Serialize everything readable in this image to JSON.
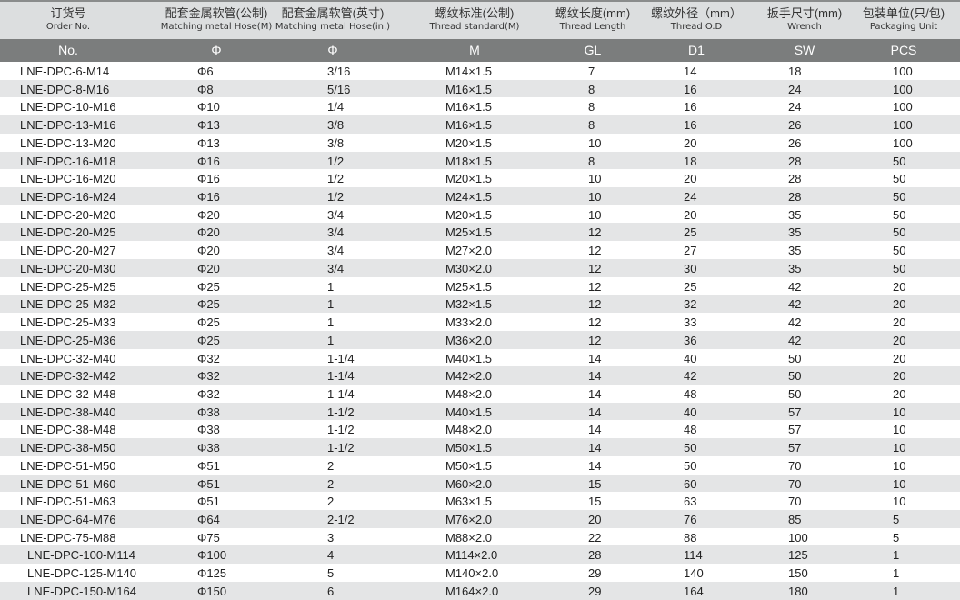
{
  "headers": [
    {
      "zh": "订货号",
      "en": "Order No.",
      "code": "No."
    },
    {
      "zh": "配套金属软管(公制)",
      "en": "Matching metal Hose(M)",
      "code": "Φ"
    },
    {
      "zh": "配套金属软管(英寸)",
      "en": "Matching metal Hose(in.)",
      "code": "Φ"
    },
    {
      "zh": "螺纹标准(公制)",
      "en": "Thread standard(M)",
      "code": "M"
    },
    {
      "zh": "螺纹长度(mm)",
      "en": "Thread  Length",
      "code": "GL"
    },
    {
      "zh": "螺纹外径（mm）",
      "en": "Thread O.D",
      "code": "D1"
    },
    {
      "zh": "扳手尺寸(mm)",
      "en": "Wrench",
      "code": "SW"
    },
    {
      "zh": "包装单位(只/包)",
      "en": "Packaging Unit",
      "code": "PCS"
    }
  ],
  "rows": [
    [
      "LNE-DPC-6-M14",
      "Φ6",
      "3/16",
      "M14×1.5",
      "7",
      "14",
      "18",
      "100"
    ],
    [
      "LNE-DPC-8-M16",
      "Φ8",
      "5/16",
      "M16×1.5",
      "8",
      "16",
      "24",
      "100"
    ],
    [
      "LNE-DPC-10-M16",
      "Φ10",
      "1/4",
      "M16×1.5",
      "8",
      "16",
      "24",
      "100"
    ],
    [
      "LNE-DPC-13-M16",
      "Φ13",
      "3/8",
      "M16×1.5",
      "8",
      "16",
      "26",
      "100"
    ],
    [
      "LNE-DPC-13-M20",
      "Φ13",
      "3/8",
      "M20×1.5",
      "10",
      "20",
      "26",
      "100"
    ],
    [
      "LNE-DPC-16-M18",
      "Φ16",
      "1/2",
      "M18×1.5",
      "8",
      "18",
      "28",
      "50"
    ],
    [
      "LNE-DPC-16-M20",
      "Φ16",
      "1/2",
      "M20×1.5",
      "10",
      "20",
      "28",
      "50"
    ],
    [
      "LNE-DPC-16-M24",
      "Φ16",
      "1/2",
      "M24×1.5",
      "10",
      "24",
      "28",
      "50"
    ],
    [
      "LNE-DPC-20-M20",
      "Φ20",
      "3/4",
      "M20×1.5",
      "10",
      "20",
      "35",
      "50"
    ],
    [
      "LNE-DPC-20-M25",
      "Φ20",
      "3/4",
      "M25×1.5",
      "12",
      "25",
      "35",
      "50"
    ],
    [
      "LNE-DPC-20-M27",
      "Φ20",
      "3/4",
      "M27×2.0",
      "12",
      "27",
      "35",
      "50"
    ],
    [
      "LNE-DPC-20-M30",
      "Φ20",
      "3/4",
      "M30×2.0",
      "12",
      "30",
      "35",
      "50"
    ],
    [
      "LNE-DPC-25-M25",
      "Φ25",
      "1",
      "M25×1.5",
      "12",
      "25",
      "42",
      "20"
    ],
    [
      "LNE-DPC-25-M32",
      "Φ25",
      "1",
      "M32×1.5",
      "12",
      "32",
      "42",
      "20"
    ],
    [
      "LNE-DPC-25-M33",
      "Φ25",
      "1",
      "M33×2.0",
      "12",
      "33",
      "42",
      "20"
    ],
    [
      "LNE-DPC-25-M36",
      "Φ25",
      "1",
      "M36×2.0",
      "12",
      "36",
      "42",
      "20"
    ],
    [
      "LNE-DPC-32-M40",
      "Φ32",
      "1-1/4",
      "M40×1.5",
      "14",
      "40",
      "50",
      "20"
    ],
    [
      "LNE-DPC-32-M42",
      "Φ32",
      "1-1/4",
      "M42×2.0",
      "14",
      "42",
      "50",
      "20"
    ],
    [
      "LNE-DPC-32-M48",
      "Φ32",
      "1-1/4",
      "M48×2.0",
      "14",
      "48",
      "50",
      "20"
    ],
    [
      "LNE-DPC-38-M40",
      "Φ38",
      "1-1/2",
      "M40×1.5",
      "14",
      "40",
      "57",
      "10"
    ],
    [
      "LNE-DPC-38-M48",
      "Φ38",
      "1-1/2",
      "M48×2.0",
      "14",
      "48",
      "57",
      "10"
    ],
    [
      "LNE-DPC-38-M50",
      "Φ38",
      "1-1/2",
      "M50×1.5",
      "14",
      "50",
      "57",
      "10"
    ],
    [
      "LNE-DPC-51-M50",
      "Φ51",
      "2",
      "M50×1.5",
      "14",
      "50",
      "70",
      "10"
    ],
    [
      "LNE-DPC-51-M60",
      "Φ51",
      "2",
      "M60×2.0",
      "15",
      "60",
      "70",
      "10"
    ],
    [
      "LNE-DPC-51-M63",
      "Φ51",
      "2",
      "M63×1.5",
      "15",
      "63",
      "70",
      "10"
    ],
    [
      "LNE-DPC-64-M76",
      "Φ64",
      "2-1/2",
      "M76×2.0",
      "20",
      "76",
      "85",
      "5"
    ],
    [
      "LNE-DPC-75-M88",
      "Φ75",
      "3",
      "M88×2.0",
      "22",
      "88",
      "100",
      "5"
    ],
    [
      "LNE-DPC-100-M114",
      "Φ100",
      "4",
      "M114×2.0",
      "28",
      "114",
      "125",
      "1"
    ],
    [
      "LNE-DPC-125-M140",
      "Φ125",
      "5",
      "M140×2.0",
      "29",
      "140",
      "150",
      "1"
    ],
    [
      "LNE-DPC-150-M164",
      "Φ150",
      "6",
      "M164×2.0",
      "29",
      "164",
      "180",
      "1"
    ]
  ]
}
